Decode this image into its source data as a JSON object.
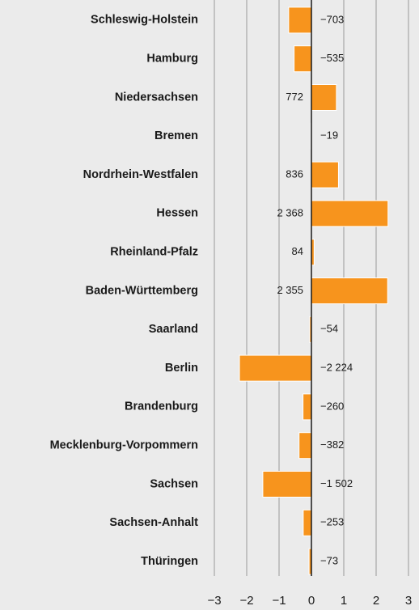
{
  "chart_data": {
    "type": "bar",
    "orientation": "horizontal",
    "categories": [
      "Schleswig-Holstein",
      "Hamburg",
      "Niedersachsen",
      "Bremen",
      "Nordrhein-Westfalen",
      "Hessen",
      "Rheinland-Pfalz",
      "Baden-Württemberg",
      "Saarland",
      "Berlin",
      "Brandenburg",
      "Mecklenburg-Vorpommern",
      "Sachsen",
      "Sachsen-Anhalt",
      "Thüringen"
    ],
    "values": [
      -0.703,
      -0.535,
      0.772,
      -0.019,
      0.836,
      2.368,
      0.084,
      2.355,
      -0.054,
      -2.224,
      -0.26,
      -0.382,
      -1.502,
      -0.253,
      -0.073
    ],
    "value_labels": [
      "−703",
      "−535",
      "772",
      "−19",
      "836",
      "2 368",
      "84",
      "2 355",
      "−54",
      "−2 224",
      "−260",
      "−382",
      "−1 502",
      "−253",
      "−73"
    ],
    "color": "#f7941d",
    "xlim": [
      -3,
      3
    ],
    "xticks": [
      {
        "value": -3,
        "label": "−3"
      },
      {
        "value": -2,
        "label": "−2"
      },
      {
        "value": -1,
        "label": "−1"
      },
      0,
      1,
      2,
      3
    ],
    "grid": true
  }
}
